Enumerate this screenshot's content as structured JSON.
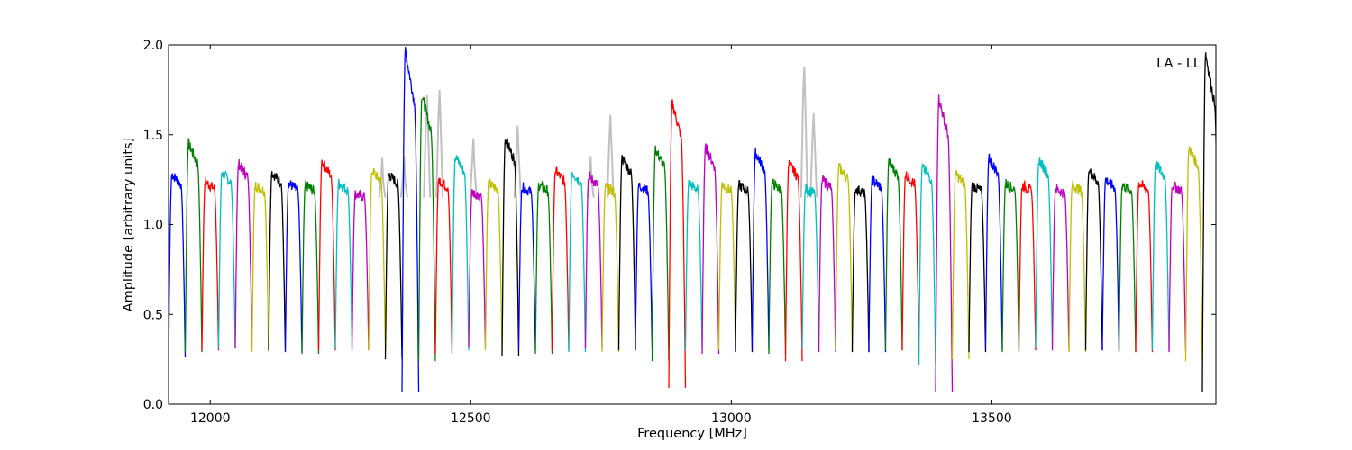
{
  "chart_data": {
    "type": "line",
    "xlabel": "Frequency [MHz]",
    "ylabel": "Amplitude [arbitrary units]",
    "annotation": "LA - LL",
    "xlim": [
      11920,
      13930
    ],
    "ylim": [
      0.0,
      2.0
    ],
    "x_ticks": [
      12000,
      12500,
      13000,
      13500
    ],
    "x_tick_labels": [
      "12000",
      "12500",
      "13000",
      "13500"
    ],
    "y_ticks": [
      0.0,
      0.5,
      1.0,
      1.5,
      2.0
    ],
    "y_tick_labels": [
      "0.0",
      "0.5",
      "1.0",
      "1.5",
      "2.0"
    ],
    "grid": false,
    "legend": "none",
    "color_cycle": [
      "#0000ff",
      "#008000",
      "#ff0000",
      "#00bfbf",
      "#bf00bf",
      "#bfbf00",
      "#000000"
    ],
    "background_series_color": "#c0c0c0",
    "channel_width_mhz": 32,
    "channel_start_mhz": 11920,
    "channel_count": 63,
    "channel_peak_values": [
      1.28,
      1.45,
      1.24,
      1.29,
      1.34,
      1.22,
      1.29,
      1.23,
      1.22,
      1.35,
      1.23,
      1.17,
      1.3,
      1.28,
      1.97,
      1.72,
      1.25,
      1.38,
      1.18,
      1.23,
      1.48,
      1.21,
      1.22,
      1.3,
      1.29,
      1.27,
      1.21,
      1.37,
      1.22,
      1.42,
      1.68,
      1.23,
      1.43,
      1.22,
      1.22,
      1.4,
      1.23,
      1.34,
      1.2,
      1.25,
      1.32,
      1.2,
      1.25,
      1.35,
      1.28,
      1.32,
      1.7,
      1.28,
      1.22,
      1.37,
      1.23,
      1.22,
      1.36,
      1.2,
      1.22,
      1.3,
      1.25,
      1.22,
      1.23,
      1.34,
      1.22,
      1.43,
      1.95
    ],
    "channel_dip_values": [
      0.26,
      0.29,
      0.3,
      0.31,
      0.31,
      0.29,
      0.3,
      0.29,
      0.28,
      0.3,
      0.31,
      0.3,
      0.3,
      0.25,
      0.07,
      0.24,
      0.28,
      0.3,
      0.32,
      0.3,
      0.27,
      0.3,
      0.28,
      0.3,
      0.29,
      0.31,
      0.29,
      0.3,
      0.3,
      0.24,
      0.09,
      0.3,
      0.28,
      0.3,
      0.29,
      0.3,
      0.28,
      0.24,
      0.31,
      0.29,
      0.3,
      0.29,
      0.29,
      0.3,
      0.3,
      0.22,
      0.07,
      0.25,
      0.29,
      0.3,
      0.29,
      0.3,
      0.32,
      0.3,
      0.29,
      0.3,
      0.3,
      0.29,
      0.29,
      0.3,
      0.29,
      0.24,
      0.07
    ],
    "gray_peak_values": [
      {
        "x": 12330,
        "y": 1.37
      },
      {
        "x": 12372,
        "y": 1.38
      },
      {
        "x": 12416,
        "y": 1.72
      },
      {
        "x": 12440,
        "y": 1.75
      },
      {
        "x": 12505,
        "y": 1.48
      },
      {
        "x": 12590,
        "y": 1.55
      },
      {
        "x": 12730,
        "y": 1.38
      },
      {
        "x": 12768,
        "y": 1.61
      },
      {
        "x": 13140,
        "y": 1.88
      },
      {
        "x": 13158,
        "y": 1.62
      }
    ]
  }
}
